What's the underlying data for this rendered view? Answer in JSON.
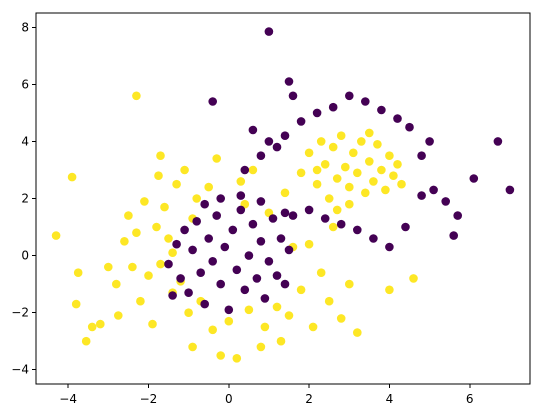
{
  "chart_data": {
    "type": "scatter",
    "title": "",
    "xlabel": "",
    "ylabel": "",
    "xlim": [
      -4.8,
      7.5
    ],
    "ylim": [
      -4.5,
      8.5
    ],
    "xticks": [
      -4,
      -2,
      0,
      2,
      4,
      6
    ],
    "yticks": [
      -4,
      -2,
      0,
      2,
      4,
      6,
      8
    ],
    "grid": false,
    "legend": "none",
    "series": [
      {
        "color": "#fde725",
        "points": [
          [
            -4.3,
            0.7
          ],
          [
            -3.9,
            2.75
          ],
          [
            -3.8,
            -1.7
          ],
          [
            -3.75,
            -0.6
          ],
          [
            -3.55,
            -3.0
          ],
          [
            -3.4,
            -2.5
          ],
          [
            -3.2,
            -2.4
          ],
          [
            -3.0,
            -0.4
          ],
          [
            -2.8,
            -1.0
          ],
          [
            -2.75,
            -2.1
          ],
          [
            -2.6,
            0.5
          ],
          [
            -2.5,
            1.4
          ],
          [
            -2.4,
            -0.4
          ],
          [
            -2.3,
            0.8
          ],
          [
            -2.2,
            -1.6
          ],
          [
            -2.1,
            1.9
          ],
          [
            -2.0,
            -0.7
          ],
          [
            -1.9,
            -2.4
          ],
          [
            -1.8,
            1.0
          ],
          [
            -1.75,
            2.8
          ],
          [
            -1.7,
            -0.3
          ],
          [
            -1.6,
            1.7
          ],
          [
            -1.5,
            0.6
          ],
          [
            -1.4,
            -1.3
          ],
          [
            -1.3,
            2.5
          ],
          [
            -1.2,
            -0.9
          ],
          [
            -1.1,
            3.0
          ],
          [
            -1.0,
            -2.0
          ],
          [
            -0.9,
            -3.2
          ],
          [
            -0.8,
            2.0
          ],
          [
            -0.7,
            -1.6
          ],
          [
            -0.5,
            2.4
          ],
          [
            -0.4,
            -2.6
          ],
          [
            -0.3,
            3.4
          ],
          [
            -0.2,
            -3.5
          ],
          [
            0.0,
            -2.3
          ],
          [
            0.2,
            -3.6
          ],
          [
            0.3,
            2.6
          ],
          [
            0.5,
            -1.9
          ],
          [
            0.6,
            3.0
          ],
          [
            0.8,
            -3.2
          ],
          [
            0.9,
            -2.5
          ],
          [
            1.0,
            1.5
          ],
          [
            1.2,
            -1.8
          ],
          [
            1.3,
            -3.0
          ],
          [
            1.5,
            -2.1
          ],
          [
            1.6,
            0.3
          ],
          [
            1.8,
            -1.2
          ],
          [
            2.0,
            0.4
          ],
          [
            2.1,
            -2.5
          ],
          [
            2.3,
            -0.6
          ],
          [
            2.5,
            -1.6
          ],
          [
            2.6,
            1.0
          ],
          [
            2.8,
            -2.2
          ],
          [
            3.0,
            -1.0
          ],
          [
            3.2,
            -2.7
          ],
          [
            4.0,
            -1.2
          ],
          [
            4.6,
            -0.8
          ],
          [
            -2.3,
            5.6
          ],
          [
            -1.7,
            3.5
          ],
          [
            -1.4,
            0.1
          ],
          [
            -0.9,
            1.3
          ],
          [
            0.4,
            1.8
          ],
          [
            1.4,
            2.2
          ],
          [
            1.8,
            2.9
          ],
          [
            2.0,
            3.6
          ],
          [
            2.2,
            2.5
          ],
          [
            2.3,
            4.0
          ],
          [
            2.4,
            3.2
          ],
          [
            2.5,
            2.0
          ],
          [
            2.6,
            3.8
          ],
          [
            2.7,
            2.7
          ],
          [
            2.8,
            4.2
          ],
          [
            2.9,
            3.1
          ],
          [
            3.0,
            2.4
          ],
          [
            3.1,
            3.6
          ],
          [
            3.2,
            2.9
          ],
          [
            3.3,
            4.0
          ],
          [
            3.4,
            2.2
          ],
          [
            3.5,
            3.3
          ],
          [
            3.6,
            2.6
          ],
          [
            3.7,
            3.9
          ],
          [
            3.8,
            3.0
          ],
          [
            3.9,
            2.3
          ],
          [
            4.0,
            3.5
          ],
          [
            4.1,
            2.8
          ],
          [
            4.2,
            3.2
          ],
          [
            4.3,
            2.5
          ],
          [
            3.0,
            1.8
          ],
          [
            2.2,
            3.0
          ],
          [
            3.5,
            4.3
          ],
          [
            2.7,
            1.6
          ]
        ]
      },
      {
        "color": "#440154",
        "points": [
          [
            1.0,
            7.85
          ],
          [
            1.5,
            6.1
          ],
          [
            -0.4,
            5.4
          ],
          [
            6.7,
            4.0
          ],
          [
            7.0,
            2.3
          ],
          [
            6.1,
            2.7
          ],
          [
            5.7,
            1.4
          ],
          [
            5.6,
            0.7
          ],
          [
            5.4,
            1.9
          ],
          [
            5.1,
            2.3
          ],
          [
            4.8,
            3.5
          ],
          [
            4.5,
            4.5
          ],
          [
            4.4,
            1.0
          ],
          [
            4.2,
            4.8
          ],
          [
            4.0,
            0.3
          ],
          [
            3.8,
            5.1
          ],
          [
            3.6,
            0.6
          ],
          [
            3.4,
            5.4
          ],
          [
            3.2,
            0.9
          ],
          [
            3.0,
            5.6
          ],
          [
            2.8,
            1.1
          ],
          [
            2.6,
            5.2
          ],
          [
            2.4,
            1.3
          ],
          [
            2.2,
            5.0
          ],
          [
            2.0,
            1.6
          ],
          [
            1.8,
            4.7
          ],
          [
            1.6,
            1.4
          ],
          [
            1.4,
            4.2
          ],
          [
            1.2,
            3.8
          ],
          [
            1.0,
            4.0
          ],
          [
            0.8,
            3.5
          ],
          [
            0.6,
            4.4
          ],
          [
            0.4,
            3.0
          ],
          [
            1.6,
            5.6
          ],
          [
            5.0,
            4.0
          ],
          [
            4.8,
            2.1
          ],
          [
            -1.5,
            -0.3
          ],
          [
            -1.3,
            0.4
          ],
          [
            -1.2,
            -0.8
          ],
          [
            -1.1,
            0.9
          ],
          [
            -1.0,
            -1.3
          ],
          [
            -0.9,
            0.2
          ],
          [
            -0.8,
            1.2
          ],
          [
            -0.7,
            -0.6
          ],
          [
            -0.6,
            -1.7
          ],
          [
            -0.5,
            0.6
          ],
          [
            -0.4,
            -0.2
          ],
          [
            -0.3,
            1.4
          ],
          [
            -0.2,
            -1.0
          ],
          [
            -0.1,
            0.3
          ],
          [
            0.0,
            -1.9
          ],
          [
            0.1,
            0.9
          ],
          [
            0.2,
            -0.5
          ],
          [
            0.3,
            1.6
          ],
          [
            0.4,
            -1.2
          ],
          [
            0.5,
            0.0
          ],
          [
            0.6,
            1.1
          ],
          [
            0.7,
            -0.8
          ],
          [
            0.8,
            0.5
          ],
          [
            0.9,
            -1.5
          ],
          [
            1.0,
            -0.2
          ],
          [
            1.1,
            1.3
          ],
          [
            1.2,
            -0.7
          ],
          [
            1.3,
            0.6
          ],
          [
            1.4,
            -1.0
          ],
          [
            1.5,
            0.2
          ],
          [
            -0.6,
            1.8
          ],
          [
            -0.2,
            2.0
          ],
          [
            0.3,
            2.1
          ],
          [
            0.8,
            1.9
          ],
          [
            -1.4,
            -1.4
          ],
          [
            1.4,
            1.5
          ]
        ]
      }
    ]
  }
}
